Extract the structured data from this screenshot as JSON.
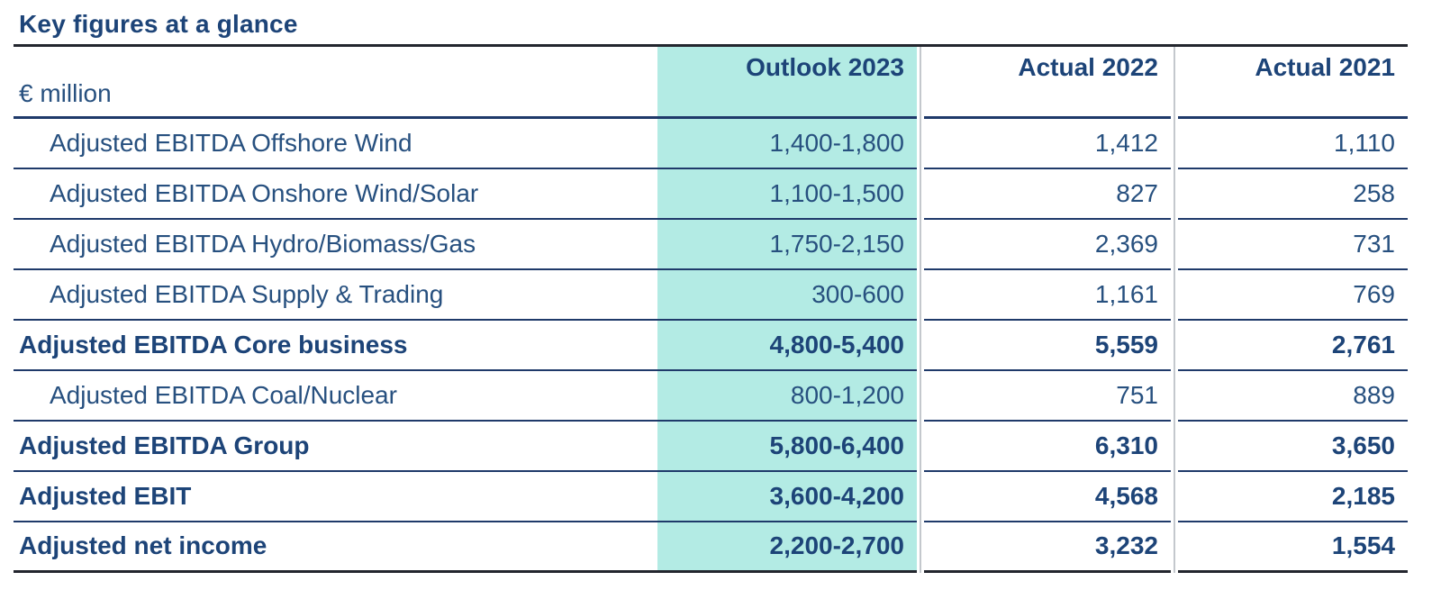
{
  "title": "Key figures at a glance",
  "colors": {
    "navy_text": "#1d4478",
    "navy_text_regular": "#27507f",
    "teal_highlight": "#b3ebe4",
    "row_line": "#1f3a6a",
    "frame_line": "#23262e",
    "column_divider": "#c4c8cd"
  },
  "table": {
    "unit_label": "€ million",
    "columns": [
      "Outlook 2023",
      "Actual 2022",
      "Actual 2021"
    ],
    "rows": [
      {
        "label": "Adjusted EBITDA Offshore Wind",
        "indent": true,
        "bold": false,
        "outlook_2023": "1,400-1,800",
        "actual_2022": "1,412",
        "actual_2021": "1,110"
      },
      {
        "label": "Adjusted EBITDA Onshore Wind/Solar",
        "indent": true,
        "bold": false,
        "outlook_2023": "1,100-1,500",
        "actual_2022": "827",
        "actual_2021": "258"
      },
      {
        "label": "Adjusted EBITDA Hydro/Biomass/Gas",
        "indent": true,
        "bold": false,
        "outlook_2023": "1,750-2,150",
        "actual_2022": "2,369",
        "actual_2021": "731"
      },
      {
        "label": "Adjusted EBITDA Supply & Trading",
        "indent": true,
        "bold": false,
        "outlook_2023": "300-600",
        "actual_2022": "1,161",
        "actual_2021": "769"
      },
      {
        "label": "Adjusted EBITDA Core business",
        "indent": false,
        "bold": true,
        "outlook_2023": "4,800-5,400",
        "actual_2022": "5,559",
        "actual_2021": "2,761"
      },
      {
        "label": "Adjusted EBITDA Coal/Nuclear",
        "indent": true,
        "bold": false,
        "outlook_2023": "800-1,200",
        "actual_2022": "751",
        "actual_2021": "889"
      },
      {
        "label": "Adjusted EBITDA Group",
        "indent": false,
        "bold": true,
        "outlook_2023": "5,800-6,400",
        "actual_2022": "6,310",
        "actual_2021": "3,650"
      },
      {
        "label": "Adjusted EBIT",
        "indent": false,
        "bold": true,
        "outlook_2023": "3,600-4,200",
        "actual_2022": "4,568",
        "actual_2021": "2,185"
      },
      {
        "label": "Adjusted net income",
        "indent": false,
        "bold": true,
        "outlook_2023": "2,200-2,700",
        "actual_2022": "3,232",
        "actual_2021": "1,554"
      }
    ]
  }
}
